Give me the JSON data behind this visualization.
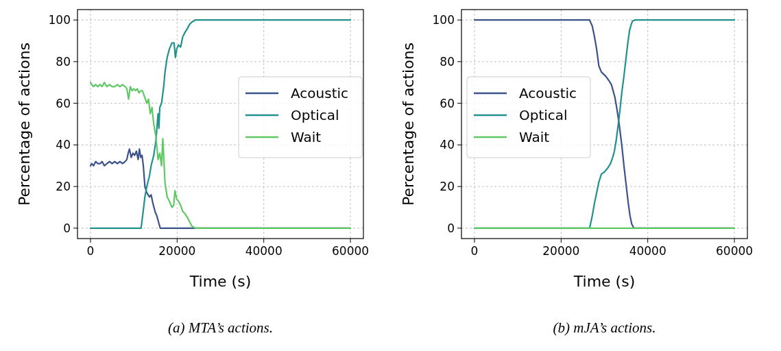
{
  "chart_data": [
    {
      "type": "line",
      "xlabel": "Time (s)",
      "ylabel": "Percentage of actions",
      "xlim": [
        -3000,
        63000
      ],
      "ylim": [
        -5,
        105
      ],
      "xticks": [
        0,
        20000,
        40000,
        60000
      ],
      "yticks": [
        0,
        20,
        40,
        60,
        80,
        100
      ],
      "grid": true,
      "legend": "right",
      "annotations": [
        "(a) MTA’s actions."
      ],
      "series": [
        {
          "name": "Acoustic",
          "color": "#3b528b",
          "x": [
            0,
            300,
            700,
            1200,
            1700,
            2200,
            2700,
            3200,
            3800,
            4400,
            5000,
            5600,
            6200,
            6800,
            7400,
            8000,
            8400,
            8700,
            9000,
            9400,
            9800,
            10200,
            10600,
            11000,
            11300,
            11600,
            11900,
            12200,
            12560,
            13000,
            13600,
            14000,
            14400,
            14900,
            15300,
            15700,
            16100,
            20000,
            40000,
            60000
          ],
          "values": [
            30,
            31,
            30,
            32,
            31,
            31,
            32,
            30,
            31,
            32,
            31,
            32,
            31,
            32,
            31,
            32,
            33,
            36,
            38,
            34,
            36,
            35,
            37,
            33,
            38,
            34,
            35,
            30,
            20,
            17,
            15,
            16,
            12,
            8,
            6,
            3,
            0,
            0,
            0,
            0
          ]
        },
        {
          "name": "Optical",
          "color": "#21918c",
          "x": [
            0,
            5000,
            11680,
            12100,
            12560,
            13000,
            13600,
            14000,
            14600,
            15100,
            15600,
            15800,
            16000,
            16400,
            16900,
            17200,
            17700,
            18200,
            18800,
            19300,
            19600,
            19900,
            20300,
            20800,
            21300,
            21800,
            22400,
            22900,
            23400,
            24200,
            40000,
            60000
          ],
          "values": [
            0,
            0,
            0,
            7,
            15,
            20,
            25,
            30,
            35,
            42,
            55,
            48,
            58,
            60,
            68,
            75,
            82,
            86,
            89,
            89,
            82,
            86,
            88,
            87,
            92,
            94,
            96,
            98,
            99,
            100,
            100,
            100
          ]
        },
        {
          "name": "Wait",
          "color": "#5ec962",
          "x": [
            0,
            300,
            700,
            1200,
            1700,
            2200,
            2700,
            3200,
            3800,
            4400,
            5000,
            5600,
            6200,
            6800,
            7400,
            8000,
            8400,
            8800,
            9200,
            9600,
            10000,
            10400,
            10800,
            11200,
            11600,
            12000,
            12500,
            13000,
            13400,
            13800,
            14200,
            14600,
            15100,
            15600,
            16000,
            16400,
            16700,
            17200,
            17700,
            18200,
            18800,
            19200,
            19500,
            19900,
            20300,
            20800,
            21300,
            21800,
            22400,
            22900,
            23400,
            24200,
            40000,
            60000
          ],
          "values": [
            70,
            69,
            68,
            69,
            68,
            69,
            68,
            70,
            68,
            69,
            68,
            68,
            69,
            68,
            69,
            68,
            67,
            62,
            68,
            66,
            67,
            66,
            67,
            65,
            66,
            66,
            63,
            60,
            62,
            55,
            58,
            50,
            44,
            33,
            36,
            30,
            43,
            22,
            15,
            13,
            10,
            11,
            18,
            14,
            13,
            11,
            8,
            7,
            5,
            3,
            1,
            0,
            0,
            0
          ]
        }
      ]
    },
    {
      "type": "line",
      "xlabel": "Time (s)",
      "ylabel": "Percentage of actions",
      "xlim": [
        -3000,
        63000
      ],
      "ylim": [
        -5,
        105
      ],
      "xticks": [
        0,
        20000,
        40000,
        60000
      ],
      "yticks": [
        0,
        20,
        40,
        60,
        80,
        100
      ],
      "grid": true,
      "legend": "left",
      "annotations": [
        "(b) mJA’s actions."
      ],
      "series": [
        {
          "name": "Acoustic",
          "color": "#3b528b",
          "x": [
            0,
            26580,
            27200,
            27700,
            28200,
            28700,
            29300,
            30300,
            31000,
            31600,
            32000,
            32400,
            32900,
            33400,
            34000,
            34500,
            35000,
            35500,
            35900,
            36300,
            36800,
            60000
          ],
          "values": [
            100,
            100,
            97,
            92,
            86,
            78,
            75,
            73,
            71,
            69,
            66,
            63,
            57,
            50,
            40,
            30,
            21,
            12,
            6,
            2,
            0,
            0
          ]
        },
        {
          "name": "Optical",
          "color": "#21918c",
          "x": [
            0,
            26580,
            27200,
            27700,
            28200,
            28700,
            29300,
            30000,
            30800,
            31400,
            31900,
            32300,
            32700,
            33200,
            33600,
            34000,
            34500,
            35000,
            35400,
            35800,
            36200,
            36500,
            37000,
            60000
          ],
          "values": [
            0,
            0,
            6,
            12,
            17,
            22,
            26,
            27,
            29,
            31,
            34,
            37,
            42,
            50,
            57,
            65,
            73,
            82,
            89,
            95,
            98,
            99.5,
            100,
            100
          ]
        },
        {
          "name": "Wait",
          "color": "#5ec962",
          "x": [
            0,
            60000
          ],
          "values": [
            0,
            0
          ]
        }
      ]
    }
  ]
}
